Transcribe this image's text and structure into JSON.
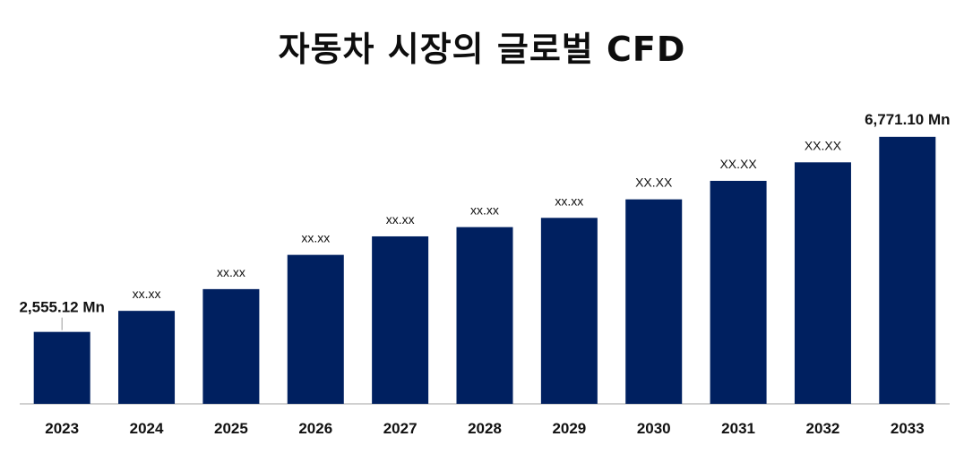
{
  "chart_data": {
    "type": "bar",
    "title": "자동차 시장의 글로벌 CFD",
    "xlabel": "",
    "ylabel": "",
    "categories": [
      "2023",
      "2024",
      "2025",
      "2026",
      "2027",
      "2028",
      "2029",
      "2030",
      "2031",
      "2032",
      "2033"
    ],
    "values": [
      2555.12,
      3010,
      3480,
      4220,
      4620,
      4820,
      5020,
      5420,
      5820,
      6220,
      6771.1
    ],
    "data_labels": [
      "2,555.12 Mn",
      "xx.xx",
      "xx.xx",
      "xx.xx",
      "xx.xx",
      "xx.xx",
      "xx.xx",
      "XX.XX",
      "XX.XX",
      "XX.XX",
      "6,771.10 Mn"
    ],
    "ylim": [
      1000,
      7000
    ],
    "bar_color": "#002060",
    "axis_color": "#d0d0d0",
    "grid": false,
    "legend": "none"
  }
}
